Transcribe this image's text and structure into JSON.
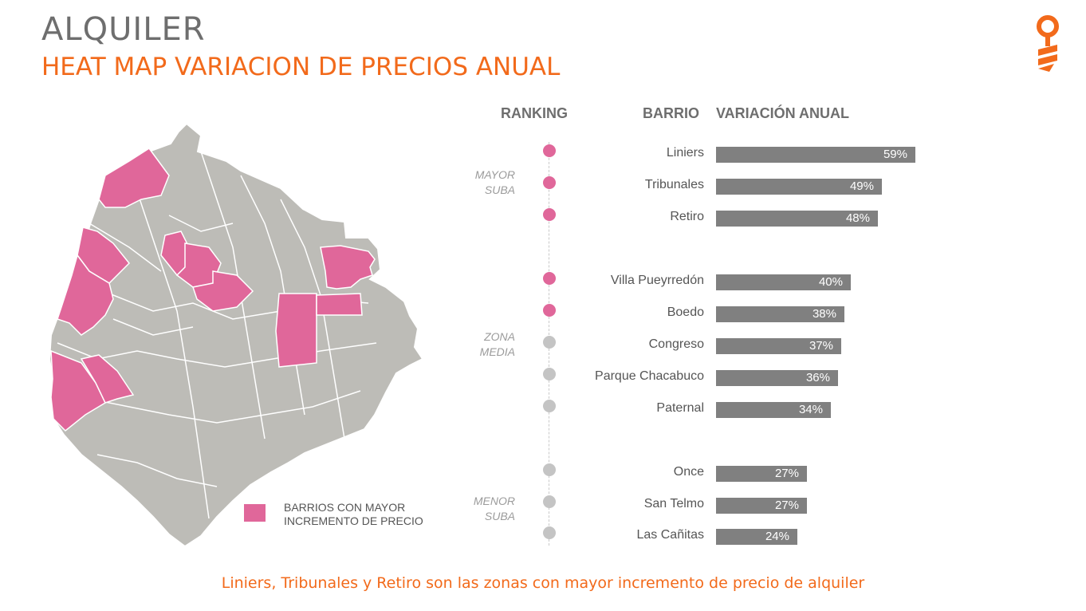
{
  "header": {
    "title": "ALQUILER",
    "subtitle": "HEAT MAP VARIACION DE PRECIOS ANUAL"
  },
  "legend": {
    "label": "BARRIOS CON MAYOR\nINCREMENTO DE PRECIO",
    "color": "#e0679a"
  },
  "columns": {
    "ranking": "RANKING",
    "barrio": "BARRIO",
    "variacion": "VARIACIÓN ANUAL"
  },
  "zones": [
    {
      "label": "MAYOR\nSUBA"
    },
    {
      "label": "ZONA\nMEDIA"
    },
    {
      "label": "MENOR\nSUBA"
    }
  ],
  "chart_data": {
    "type": "bar",
    "orientation": "horizontal",
    "categories": [
      "Liniers",
      "Tribunales",
      "Retiro",
      "Villa Pueyrredón",
      "Boedo",
      "Congreso",
      "Parque Chacabuco",
      "Paternal",
      "Once",
      "San Telmo",
      "Las Cañitas"
    ],
    "values": [
      59,
      49,
      48,
      40,
      38,
      37,
      36,
      34,
      27,
      27,
      24
    ],
    "labels": [
      "59%",
      "49%",
      "48%",
      "40%",
      "38%",
      "37%",
      "36%",
      "34%",
      "27%",
      "27%",
      "24%"
    ],
    "highlighted": [
      true,
      true,
      true,
      true,
      true,
      false,
      false,
      false,
      false,
      false,
      false
    ],
    "bar_color": "#808080",
    "highlight_dot_color": "#e0679a",
    "normal_dot_color": "#c4c4c4"
  },
  "footer": {
    "text": "Liniers, Tribunales y Retiro son las zonas con mayor incremento de precio de alquiler"
  }
}
